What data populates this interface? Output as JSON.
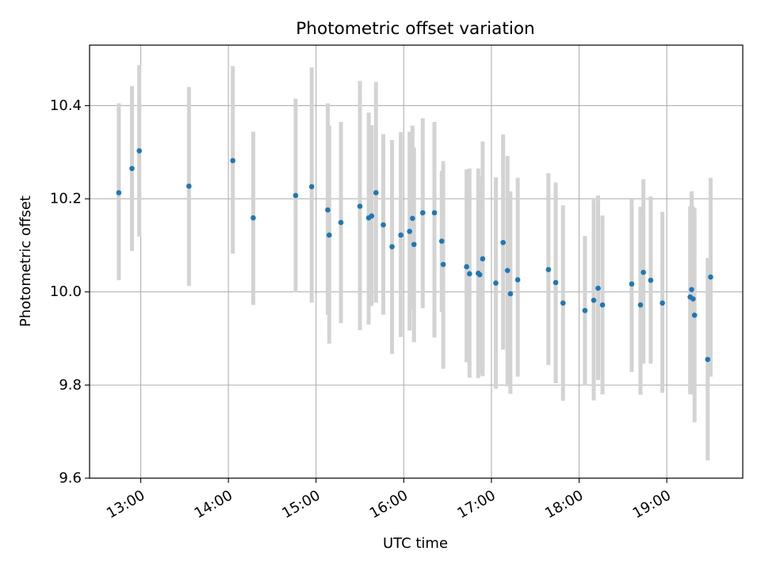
{
  "chart_data": {
    "type": "scatter",
    "title": "Photometric offset variation",
    "xlabel": "UTC time",
    "ylabel": "Photometric offset",
    "x_unit": "UTC",
    "xlim": [
      "12:25",
      "19:52"
    ],
    "ylim": [
      9.6,
      10.53
    ],
    "x_ticks": [
      "13:00",
      "14:00",
      "15:00",
      "16:00",
      "17:00",
      "18:00",
      "19:00"
    ],
    "y_ticks": [
      9.6,
      9.8,
      10.0,
      10.2,
      10.4
    ],
    "y_tick_labels": [
      "9.6",
      "9.8",
      "10.0",
      "10.2",
      "10.4"
    ],
    "grid": true,
    "colors": {
      "point": "#1f77b4",
      "errorbar": "#d3d3d3",
      "grid": "#b0b0b0"
    },
    "series": [
      {
        "x": [
          "12:45",
          "12:54",
          "12:59",
          "13:33",
          "14:03",
          "14:17",
          "14:46",
          "14:57",
          "15:08",
          "15:09",
          "15:17",
          "15:30",
          "15:36",
          "15:38",
          "15:41",
          "15:46",
          "15:52",
          "15:58",
          "16:04",
          "16:06",
          "16:07",
          "16:13",
          "16:21",
          "16:26",
          "16:27",
          "16:43",
          "16:45",
          "16:51",
          "16:52",
          "16:54",
          "17:03",
          "17:08",
          "17:11",
          "17:13",
          "17:18",
          "17:39",
          "17:44",
          "17:49",
          "18:04",
          "18:10",
          "18:13",
          "18:16",
          "18:36",
          "18:42",
          "18:44",
          "18:49",
          "18:57",
          "19:16",
          "19:17",
          "19:18",
          "19:19",
          "19:28",
          "19:30"
        ],
        "y": [
          10.213,
          10.265,
          10.303,
          10.227,
          10.282,
          10.159,
          10.207,
          10.226,
          10.176,
          10.122,
          10.149,
          10.184,
          10.159,
          10.163,
          10.213,
          10.144,
          10.097,
          10.122,
          10.13,
          10.158,
          10.102,
          10.17,
          10.17,
          10.109,
          10.059,
          10.054,
          10.039,
          10.04,
          10.037,
          10.071,
          10.019,
          10.106,
          10.046,
          9.996,
          10.026,
          10.048,
          10.02,
          9.976,
          9.96,
          9.982,
          10.008,
          9.972,
          10.017,
          9.972,
          10.042,
          10.025,
          9.976,
          9.989,
          10.005,
          9.985,
          9.95,
          9.855,
          10.032
        ],
        "yerr_low": [
          10.025,
          10.088,
          10.119,
          10.013,
          10.082,
          9.972,
          9.999,
          9.977,
          9.951,
          9.889,
          9.933,
          9.918,
          9.93,
          9.97,
          9.977,
          9.951,
          9.867,
          9.903,
          9.917,
          9.963,
          9.892,
          9.965,
          9.902,
          9.957,
          9.835,
          9.849,
          9.816,
          9.815,
          9.823,
          9.819,
          9.792,
          9.876,
          9.797,
          9.781,
          9.818,
          9.843,
          9.804,
          9.766,
          9.799,
          9.767,
          9.811,
          9.78,
          9.828,
          9.779,
          9.846,
          9.846,
          9.783,
          9.78,
          9.78,
          9.79,
          9.72,
          9.638,
          9.818
        ],
        "yerr_high": [
          10.405,
          10.442,
          10.487,
          10.44,
          10.485,
          10.344,
          10.415,
          10.482,
          10.405,
          10.357,
          10.365,
          10.453,
          10.385,
          10.358,
          10.451,
          10.339,
          10.326,
          10.343,
          10.344,
          10.357,
          10.31,
          10.373,
          10.365,
          10.26,
          10.281,
          10.263,
          10.265,
          10.265,
          10.248,
          10.323,
          10.246,
          10.338,
          10.292,
          10.216,
          10.245,
          10.255,
          10.235,
          10.186,
          10.12,
          10.198,
          10.207,
          10.164,
          10.2,
          10.183,
          10.242,
          10.205,
          10.172,
          10.184,
          10.216,
          10.183,
          10.18,
          10.073,
          10.245
        ]
      }
    ]
  }
}
